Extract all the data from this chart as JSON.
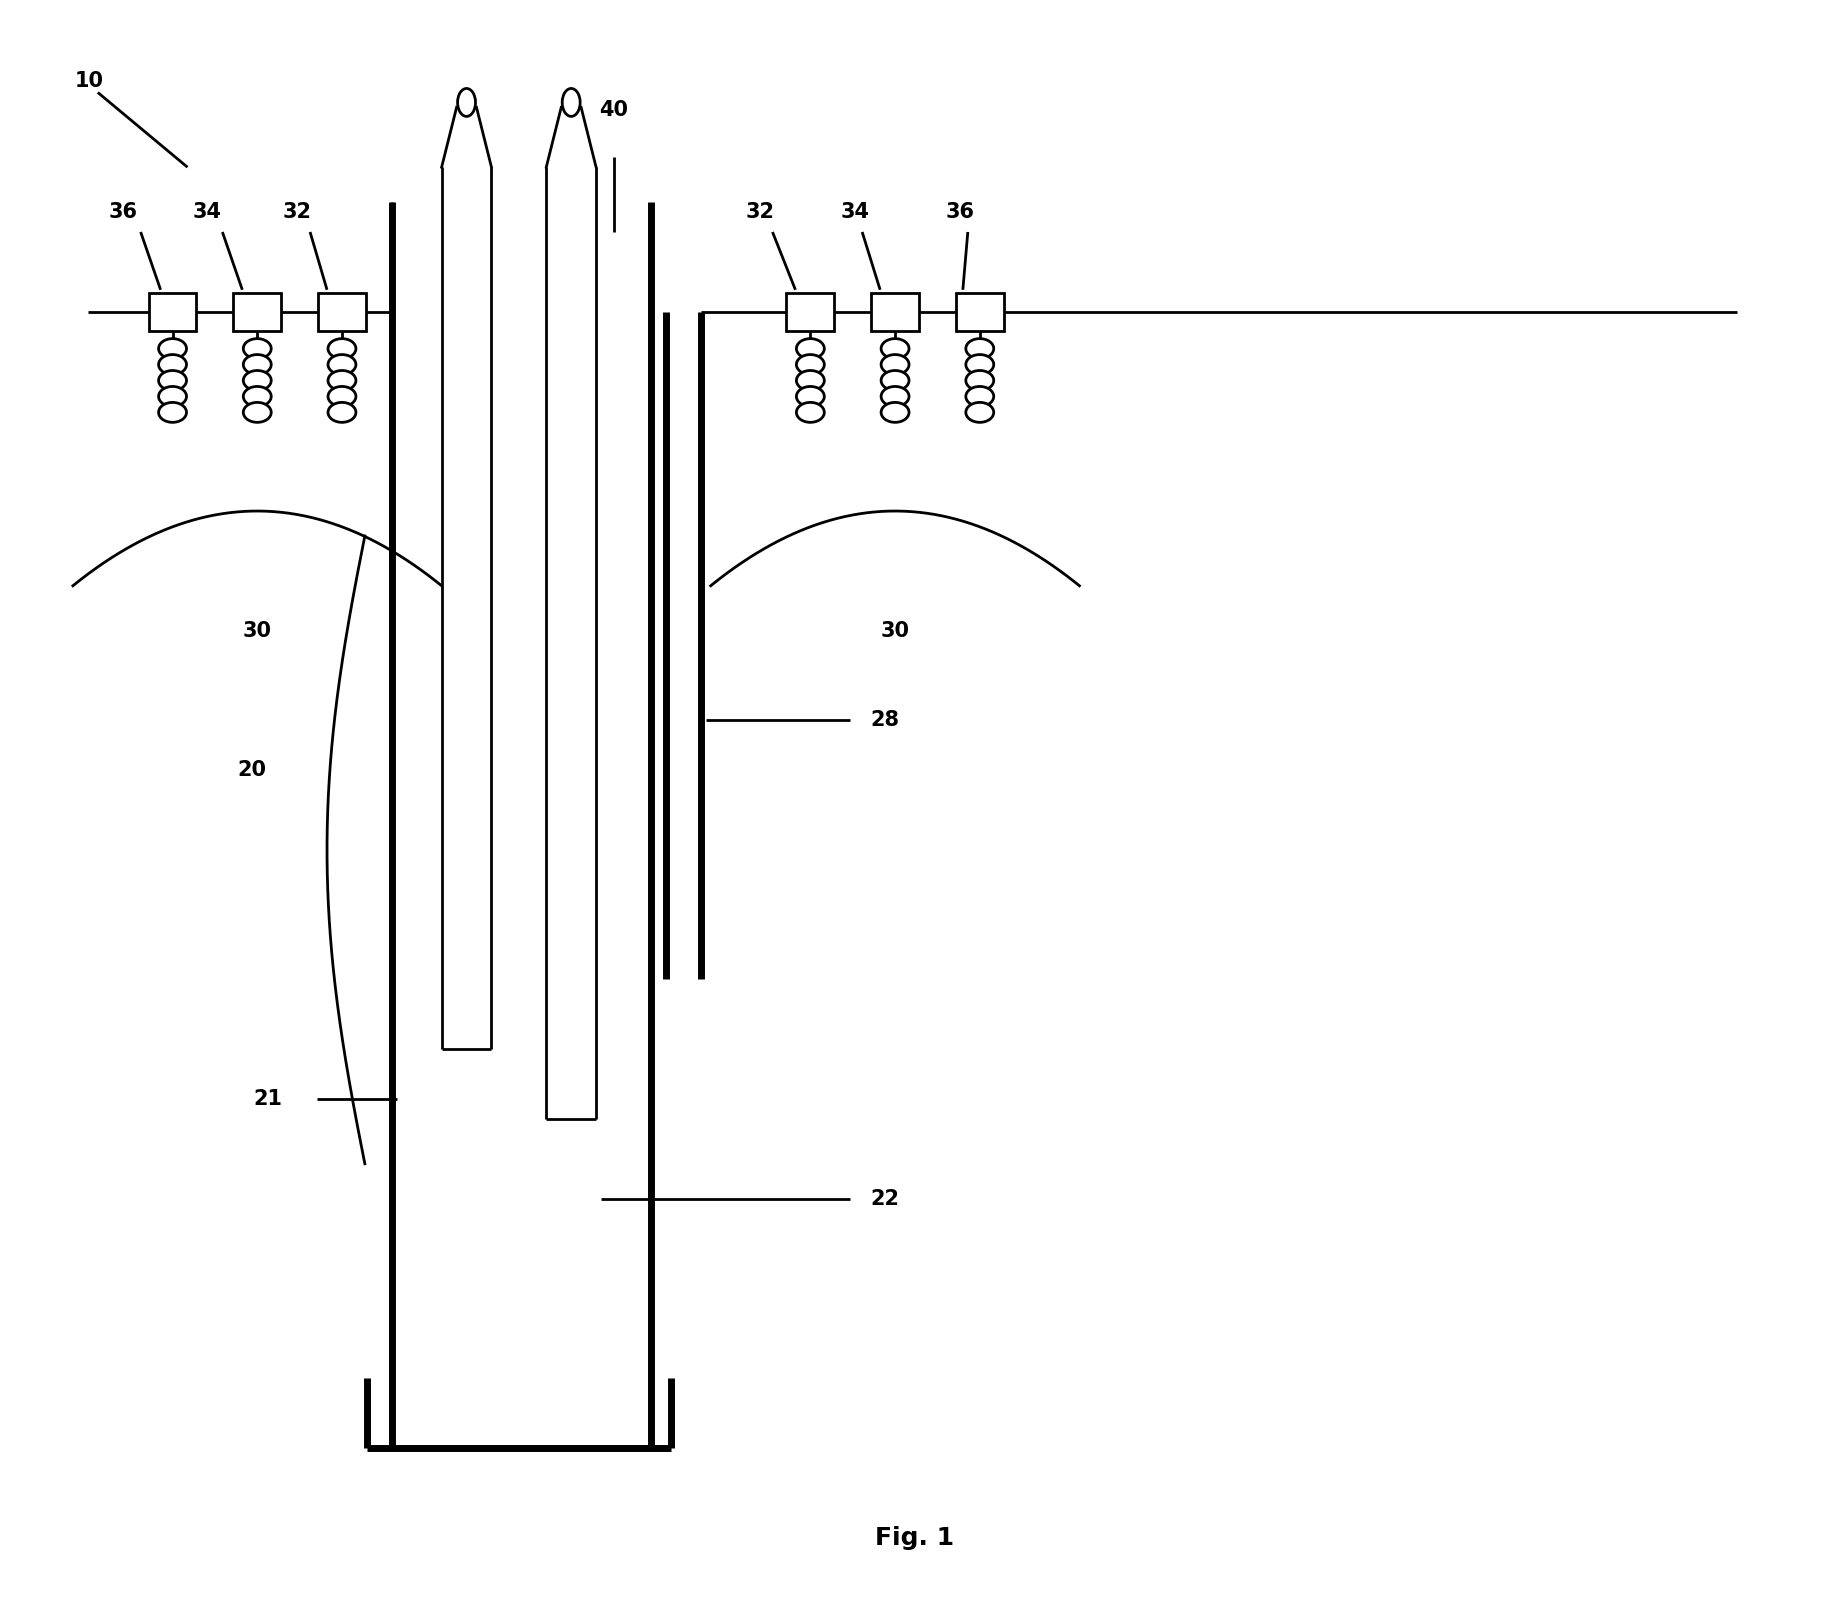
{
  "bg_color": "#ffffff",
  "line_color": "#000000",
  "lw_thin": 2.0,
  "lw_thick": 5.0,
  "fig_width": 18.3,
  "fig_height": 16.22,
  "title": "Fig. 1",
  "font_size": 15,
  "font_weight": "bold"
}
